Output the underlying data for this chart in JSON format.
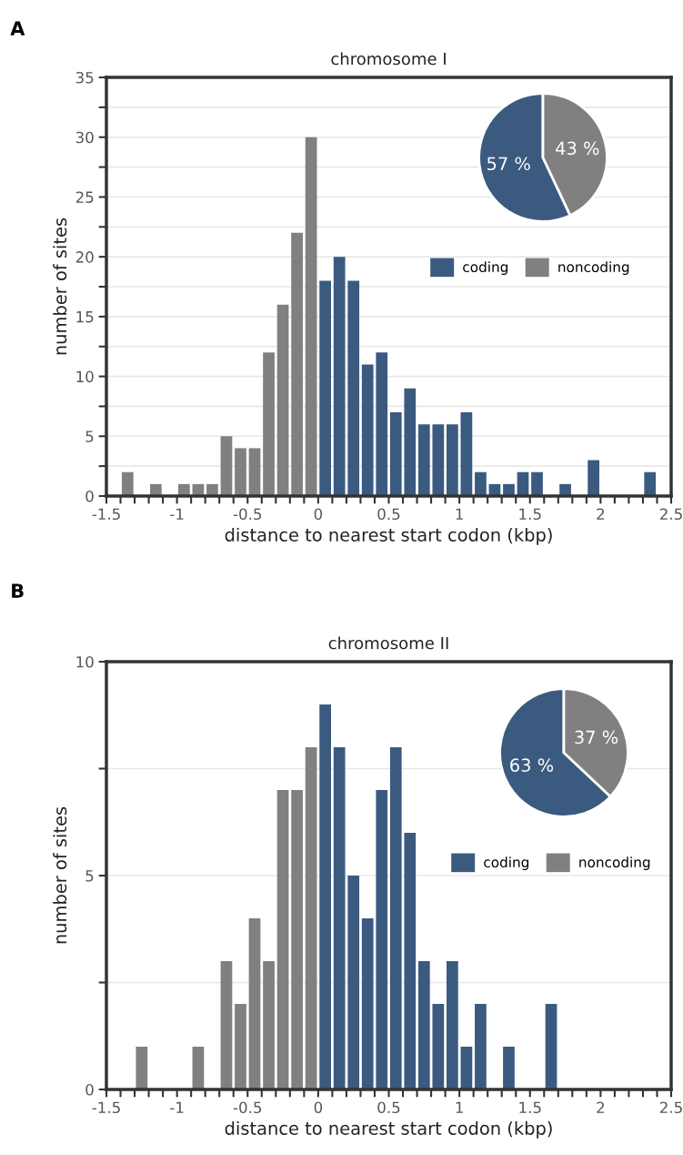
{
  "chart_data": [
    {
      "type": "histogram",
      "title": "chromosome I",
      "xlabel": "distance to nearest start codon (kbp)",
      "ylabel": "number of sites",
      "annotations": [
        "A"
      ],
      "bins": [
        -1.5,
        -1.4,
        -1.3,
        -1.2,
        -1.1,
        -1.0,
        -0.9,
        -0.8,
        -0.7,
        -0.6,
        -0.5,
        -0.4,
        -0.3,
        -0.2,
        -0.1,
        0,
        0.1,
        0.2,
        0.3,
        0.4,
        0.5,
        0.6,
        0.7,
        0.8,
        0.9,
        1.0,
        1.1,
        1.2,
        1.3,
        1.4,
        1.5,
        1.6,
        1.7,
        1.8,
        1.9,
        2.0,
        2.1,
        2.2,
        2.3,
        2.4,
        2.5
      ],
      "values": [
        0,
        2,
        0,
        1,
        0,
        1,
        1,
        1,
        5,
        4,
        4,
        12,
        16,
        22,
        30,
        18,
        20,
        18,
        11,
        12,
        7,
        9,
        6,
        6,
        6,
        7,
        2,
        1,
        1,
        2,
        2,
        0,
        1,
        0,
        3,
        0,
        0,
        0,
        2,
        0
      ],
      "colors": [
        "#808080",
        "#808080",
        "#808080",
        "#808080",
        "#808080",
        "#808080",
        "#808080",
        "#808080",
        "#808080",
        "#808080",
        "#808080",
        "#808080",
        "#808080",
        "#808080",
        "#808080",
        "#3b5a80",
        "#3b5a80",
        "#3b5a80",
        "#3b5a80",
        "#3b5a80",
        "#3b5a80",
        "#3b5a80",
        "#3b5a80",
        "#3b5a80",
        "#3b5a80",
        "#3b5a80",
        "#3b5a80",
        "#3b5a80",
        "#3b5a80",
        "#3b5a80",
        "#3b5a80",
        "#3b5a80",
        "#3b5a80",
        "#3b5a80",
        "#3b5a80",
        "#3b5a80",
        "#3b5a80",
        "#3b5a80",
        "#3b5a80",
        "#3b5a80"
      ],
      "xlim": [
        -1.5,
        2.5
      ],
      "xticks": [
        -1.5,
        {
          "value": -1.4,
          "label": null
        },
        {
          "value": -1.3,
          "label": null
        },
        {
          "value": -1.2,
          "label": null
        },
        {
          "value": -1.1,
          "label": null
        },
        -1,
        {
          "value": -0.9,
          "label": null
        },
        {
          "value": -0.8,
          "label": null
        },
        {
          "value": -0.7,
          "label": null
        },
        {
          "value": -0.6,
          "label": null
        },
        -0.5,
        {
          "value": -0.4,
          "label": null
        },
        {
          "value": -0.3,
          "label": null
        },
        {
          "value": -0.2,
          "label": null
        },
        {
          "value": -0.1,
          "label": null
        },
        0,
        {
          "value": 0.1,
          "label": null
        },
        {
          "value": 0.2,
          "label": null
        },
        {
          "value": 0.3,
          "label": null
        },
        {
          "value": 0.4,
          "label": null
        },
        0.5,
        {
          "value": 0.6,
          "label": null
        },
        {
          "value": 0.7,
          "label": null
        },
        {
          "value": 0.8,
          "label": null
        },
        {
          "value": 0.9,
          "label": null
        },
        1,
        {
          "value": 1.1,
          "label": null
        },
        {
          "value": 1.2,
          "label": null
        },
        {
          "value": 1.3,
          "label": null
        },
        {
          "value": 1.4,
          "label": null
        },
        1.5,
        {
          "value": 1.6,
          "label": null
        },
        {
          "value": 1.7,
          "label": null
        },
        {
          "value": 1.8,
          "label": null
        },
        {
          "value": 1.9,
          "label": null
        },
        2,
        {
          "value": 2.1,
          "label": null
        },
        {
          "value": 2.2,
          "label": null
        },
        {
          "value": 2.3,
          "label": null
        },
        {
          "value": 2.4,
          "label": null
        },
        2.5
      ],
      "ylim": [
        0,
        35
      ],
      "yticks": [
        0,
        {
          "value": 2.5,
          "label": null
        },
        5,
        {
          "value": 7.5,
          "label": null
        },
        10,
        {
          "value": 12.5,
          "label": null
        },
        15,
        {
          "value": 17.5,
          "label": null
        },
        20,
        {
          "value": 22.5,
          "label": null
        },
        25,
        {
          "value": 27.5,
          "label": null
        },
        30,
        {
          "value": 32.5,
          "label": null
        },
        35
      ],
      "grid": "y"
    },
    {
      "type": "pie",
      "categories": [
        "coding",
        "noncoding"
      ],
      "values": [
        57,
        43
      ],
      "colors": [
        "#3b5a80",
        "#808080"
      ],
      "value_labels": [
        "57 %",
        "43 %"
      ],
      "legend": "bottom"
    },
    {
      "type": "histogram",
      "title": "chromosome II",
      "xlabel": "distance to nearest start codon (kbp)",
      "ylabel": "number of sites",
      "annotations": [
        "B"
      ],
      "bins": [
        -1.5,
        -1.4,
        -1.3,
        -1.2,
        -1.1,
        -1.0,
        -0.9,
        -0.8,
        -0.7,
        -0.6,
        -0.5,
        -0.4,
        -0.3,
        -0.2,
        -0.1,
        0,
        0.1,
        0.2,
        0.3,
        0.4,
        0.5,
        0.6,
        0.7,
        0.8,
        0.9,
        1.0,
        1.1,
        1.2,
        1.3,
        1.4,
        1.5,
        1.6,
        1.7,
        1.8,
        1.9,
        2.0,
        2.1,
        2.2,
        2.3,
        2.4,
        2.5
      ],
      "values": [
        0,
        0,
        1,
        0,
        0,
        0,
        1,
        0,
        3,
        2,
        4,
        3,
        7,
        7,
        8,
        9,
        8,
        5,
        4,
        7,
        8,
        6,
        3,
        2,
        3,
        1,
        2,
        0,
        1,
        0,
        0,
        2,
        0,
        0,
        0,
        0,
        0,
        0,
        0,
        0
      ],
      "colors": [
        "#808080",
        "#808080",
        "#808080",
        "#808080",
        "#808080",
        "#808080",
        "#808080",
        "#808080",
        "#808080",
        "#808080",
        "#808080",
        "#808080",
        "#808080",
        "#808080",
        "#808080",
        "#3b5a80",
        "#3b5a80",
        "#3b5a80",
        "#3b5a80",
        "#3b5a80",
        "#3b5a80",
        "#3b5a80",
        "#3b5a80",
        "#3b5a80",
        "#3b5a80",
        "#3b5a80",
        "#3b5a80",
        "#3b5a80",
        "#3b5a80",
        "#3b5a80",
        "#3b5a80",
        "#3b5a80",
        "#3b5a80",
        "#3b5a80",
        "#3b5a80",
        "#3b5a80",
        "#3b5a80",
        "#3b5a80",
        "#3b5a80",
        "#3b5a80"
      ],
      "xlim": [
        -1.5,
        2.5
      ],
      "xticks": [
        -1.5,
        {
          "value": -1.4,
          "label": null
        },
        {
          "value": -1.3,
          "label": null
        },
        {
          "value": -1.2,
          "label": null
        },
        {
          "value": -1.1,
          "label": null
        },
        -1,
        {
          "value": -0.9,
          "label": null
        },
        {
          "value": -0.8,
          "label": null
        },
        {
          "value": -0.7,
          "label": null
        },
        {
          "value": -0.6,
          "label": null
        },
        -0.5,
        {
          "value": -0.4,
          "label": null
        },
        {
          "value": -0.3,
          "label": null
        },
        {
          "value": -0.2,
          "label": null
        },
        {
          "value": -0.1,
          "label": null
        },
        0,
        {
          "value": 0.1,
          "label": null
        },
        {
          "value": 0.2,
          "label": null
        },
        {
          "value": 0.3,
          "label": null
        },
        {
          "value": 0.4,
          "label": null
        },
        0.5,
        {
          "value": 0.6,
          "label": null
        },
        {
          "value": 0.7,
          "label": null
        },
        {
          "value": 0.8,
          "label": null
        },
        {
          "value": 0.9,
          "label": null
        },
        1,
        {
          "value": 1.1,
          "label": null
        },
        {
          "value": 1.2,
          "label": null
        },
        {
          "value": 1.3,
          "label": null
        },
        {
          "value": 1.4,
          "label": null
        },
        1.5,
        {
          "value": 1.6,
          "label": null
        },
        {
          "value": 1.7,
          "label": null
        },
        {
          "value": 1.8,
          "label": null
        },
        {
          "value": 1.9,
          "label": null
        },
        2,
        {
          "value": 2.1,
          "label": null
        },
        {
          "value": 2.2,
          "label": null
        },
        {
          "value": 2.3,
          "label": null
        },
        {
          "value": 2.4,
          "label": null
        },
        2.5
      ],
      "ylim": [
        0,
        10
      ],
      "yticks": [
        0,
        {
          "value": 2.5,
          "label": null
        },
        5,
        {
          "value": 7.5,
          "label": null
        },
        10
      ],
      "grid": "y"
    },
    {
      "type": "pie",
      "categories": [
        "coding",
        "noncoding"
      ],
      "values": [
        63,
        37
      ],
      "colors": [
        "#3b5a80",
        "#808080"
      ],
      "value_labels": [
        "63 %",
        "37 %"
      ],
      "legend": "bottom"
    }
  ]
}
